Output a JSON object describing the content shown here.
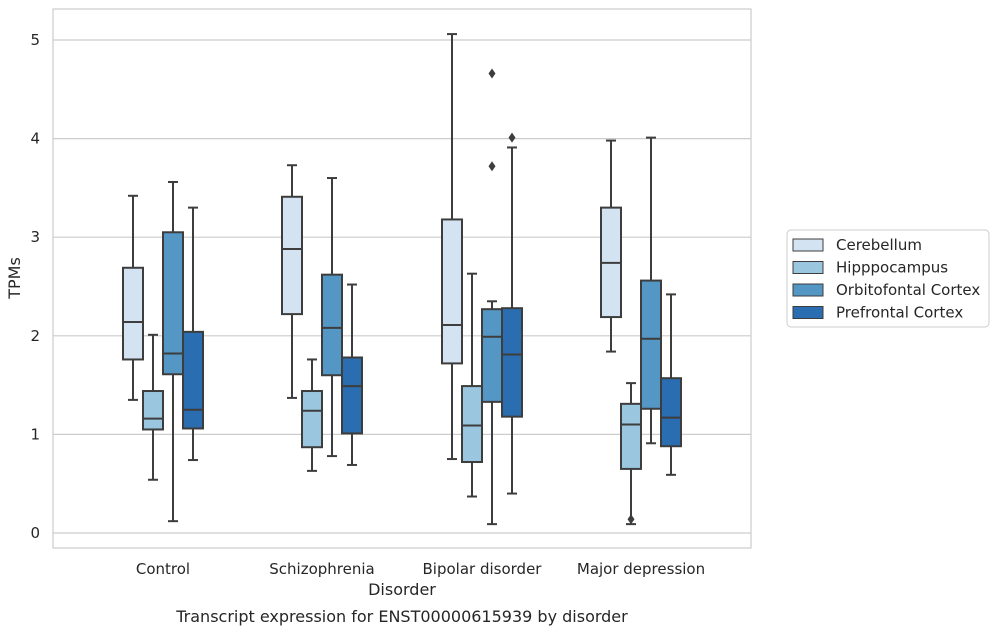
{
  "chart_data": {
    "type": "box",
    "title": "Transcript expression for ENST00000615939 by disorder",
    "xlabel": "Disorder",
    "ylabel": "TPMs",
    "ylim": [
      -0.15,
      5.32
    ],
    "yticks": [
      0,
      1,
      2,
      3,
      4,
      5
    ],
    "grid": "horizontal",
    "legend_placement": "right",
    "categories": [
      "Control",
      "Schizophrenia",
      "Bipolar disorder",
      "Major depression"
    ],
    "series": [
      {
        "name": "Cerebellum",
        "color": "#d4e3f2",
        "boxes": [
          {
            "whisker_low": 1.35,
            "q1": 1.76,
            "median": 2.14,
            "q3": 2.69,
            "whisker_high": 3.42,
            "outliers": []
          },
          {
            "whisker_low": 1.37,
            "q1": 2.22,
            "median": 2.88,
            "q3": 3.41,
            "whisker_high": 3.73,
            "outliers": []
          },
          {
            "whisker_low": 0.75,
            "q1": 1.72,
            "median": 2.11,
            "q3": 3.18,
            "whisker_high": 5.06,
            "outliers": []
          },
          {
            "whisker_low": 1.84,
            "q1": 2.19,
            "median": 2.74,
            "q3": 3.3,
            "whisker_high": 3.98,
            "outliers": []
          }
        ]
      },
      {
        "name": "Hipppocampus",
        "color": "#9bc6df",
        "boxes": [
          {
            "whisker_low": 0.54,
            "q1": 1.05,
            "median": 1.16,
            "q3": 1.44,
            "whisker_high": 2.01,
            "outliers": []
          },
          {
            "whisker_low": 0.63,
            "q1": 0.87,
            "median": 1.24,
            "q3": 1.44,
            "whisker_high": 1.76,
            "outliers": []
          },
          {
            "whisker_low": 0.37,
            "q1": 0.72,
            "median": 1.09,
            "q3": 1.49,
            "whisker_high": 2.63,
            "outliers": []
          },
          {
            "whisker_low": 0.09,
            "q1": 0.65,
            "median": 1.1,
            "q3": 1.31,
            "whisker_high": 1.52,
            "outliers": [
              0.14
            ]
          }
        ]
      },
      {
        "name": "Orbitofontal Cortex",
        "color": "#5496c4",
        "boxes": [
          {
            "whisker_low": 0.12,
            "q1": 1.61,
            "median": 1.82,
            "q3": 3.05,
            "whisker_high": 3.56,
            "outliers": []
          },
          {
            "whisker_low": 0.78,
            "q1": 1.6,
            "median": 2.08,
            "q3": 2.62,
            "whisker_high": 3.6,
            "outliers": []
          },
          {
            "whisker_low": 0.09,
            "q1": 1.33,
            "median": 1.99,
            "q3": 2.27,
            "whisker_high": 2.35,
            "outliers": [
              3.72,
              4.66
            ]
          },
          {
            "whisker_low": 0.91,
            "q1": 1.26,
            "median": 1.97,
            "q3": 2.56,
            "whisker_high": 4.01,
            "outliers": []
          }
        ]
      },
      {
        "name": "Prefrontal Cortex",
        "color": "#2a6db0",
        "boxes": [
          {
            "whisker_low": 0.74,
            "q1": 1.06,
            "median": 1.25,
            "q3": 2.04,
            "whisker_high": 3.3,
            "outliers": []
          },
          {
            "whisker_low": 0.69,
            "q1": 1.01,
            "median": 1.49,
            "q3": 1.78,
            "whisker_high": 2.52,
            "outliers": []
          },
          {
            "whisker_low": 0.4,
            "q1": 1.18,
            "median": 1.81,
            "q3": 2.28,
            "whisker_high": 3.91,
            "outliers": [
              4.01
            ]
          },
          {
            "whisker_low": 0.59,
            "q1": 0.88,
            "median": 1.17,
            "q3": 1.57,
            "whisker_high": 2.42,
            "outliers": []
          }
        ]
      }
    ]
  },
  "colors": {
    "grid": "#cccccc",
    "frame": "#cccccc",
    "box_edge": "#3d3d3d",
    "text": "#262626"
  }
}
